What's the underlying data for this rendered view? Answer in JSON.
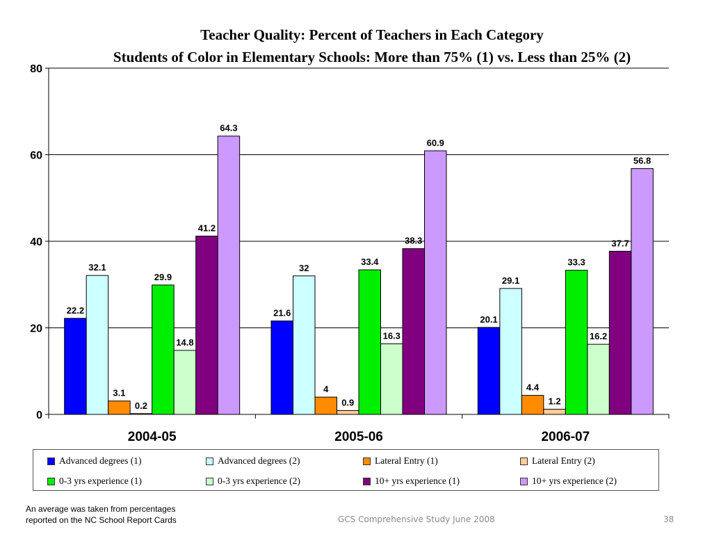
{
  "colors": {
    "series": [
      "#0000ff",
      "#ccffff",
      "#ff8c00",
      "#ffcc99",
      "#00ee00",
      "#ccffcc",
      "#800080",
      "#cc99ff"
    ]
  },
  "chart_data": {
    "type": "bar",
    "title": "Teacher Quality: Percent of Teachers in Each Category",
    "subtitle": "Students of Color in Elementary Schools: More than 75% (1) vs. Less than 25% (2)",
    "categories": [
      "2004-05",
      "2005-06",
      "2006-07"
    ],
    "ylim": [
      0,
      80
    ],
    "yticks": [
      0,
      20,
      40,
      60,
      80
    ],
    "grid": true,
    "legend_position": "bottom",
    "series": [
      {
        "name": "Advanced degrees (1)",
        "values": [
          22.2,
          21.6,
          20.1
        ]
      },
      {
        "name": "Advanced degrees (2)",
        "values": [
          32.1,
          32,
          29.1
        ]
      },
      {
        "name": "Lateral Entry (1)",
        "values": [
          3.1,
          4,
          4.4
        ]
      },
      {
        "name": "Lateral Entry (2)",
        "values": [
          0.2,
          0.9,
          1.2
        ]
      },
      {
        "name": "0-3 yrs experience (1)",
        "values": [
          29.9,
          33.4,
          33.3
        ]
      },
      {
        "name": "0-3 yrs experience (2)",
        "values": [
          14.8,
          16.3,
          16.2
        ]
      },
      {
        "name": "10+ yrs experience (1)",
        "values": [
          41.2,
          38.3,
          37.7
        ]
      },
      {
        "name": "10+ yrs experience (2)",
        "values": [
          64.3,
          60.9,
          56.8
        ]
      }
    ]
  },
  "footnote": {
    "line1": "An average was taken from percentages",
    "line2": "reported on the NC School Report Cards"
  },
  "footer": {
    "center": "GCS Comprehensive Study June 2008",
    "page": "38"
  }
}
